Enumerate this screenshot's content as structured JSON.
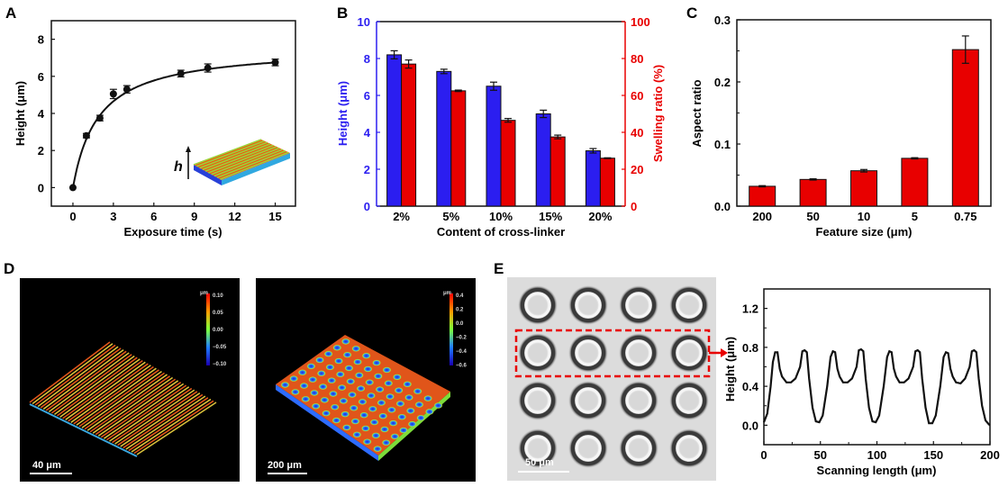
{
  "panel_labels": {
    "a": "A",
    "b": "B",
    "c": "C",
    "d": "D",
    "e": "E"
  },
  "colors": {
    "blue": "#2b1ef0",
    "red": "#e80000",
    "black": "#111111"
  },
  "chart_data": [
    {
      "id": "A",
      "type": "line",
      "title": "",
      "xlabel": "Exposure time (s)",
      "ylabel": "Height (μm)",
      "x": [
        0,
        1,
        2,
        3,
        4,
        8,
        10,
        15
      ],
      "y": [
        0,
        2.8,
        3.75,
        5.05,
        5.3,
        6.15,
        6.45,
        6.75
      ],
      "error": [
        0,
        0.12,
        0.15,
        0.25,
        0.2,
        0.18,
        0.22,
        0.18
      ],
      "xlim": [
        -1.6,
        16.5
      ],
      "ylim": [
        -1,
        9
      ],
      "xticks": [
        0,
        3,
        6,
        9,
        12,
        15
      ],
      "yticks": [
        0,
        2,
        4,
        6,
        8
      ],
      "inset_label": "h",
      "grid": false
    },
    {
      "id": "B",
      "type": "bar",
      "xlabel": "Content of cross-linker",
      "categories": [
        "2%",
        "5%",
        "10%",
        "15%",
        "20%"
      ],
      "series": [
        {
          "name": "Height",
          "axis": "left",
          "color": "#2b1ef0",
          "values": [
            8.2,
            7.3,
            6.5,
            5.0,
            3.0
          ],
          "error": [
            0.22,
            0.12,
            0.22,
            0.2,
            0.12
          ]
        },
        {
          "name": "Swelling ratio",
          "axis": "right",
          "color": "#e80000",
          "values": [
            77,
            62.5,
            46.5,
            37.5,
            26
          ],
          "error": [
            2.2,
            0.4,
            1.0,
            1.0,
            0.2
          ]
        }
      ],
      "ylabel_left": "Height (μm)",
      "ylabel_right": "Swelling ratio (%)",
      "ylim_left": [
        0,
        10
      ],
      "ylim_right": [
        0,
        100
      ],
      "yticks_left": [
        0,
        2,
        4,
        6,
        8,
        10
      ],
      "yticks_right": [
        0,
        20,
        40,
        60,
        80,
        100
      ],
      "grid": false
    },
    {
      "id": "C",
      "type": "bar",
      "xlabel": "Feature size (μm)",
      "ylabel": "Aspect ratio",
      "categories": [
        "200",
        "50",
        "10",
        "5",
        "0.75"
      ],
      "values": [
        0.032,
        0.043,
        0.057,
        0.077,
        0.252
      ],
      "error": [
        0.001,
        0.001,
        0.002,
        0.001,
        0.022
      ],
      "ylim": [
        0,
        0.3
      ],
      "yticks": [
        "0.0",
        "0.1",
        "0.2",
        "0.3"
      ],
      "grid": false
    },
    {
      "id": "E",
      "type": "line",
      "xlabel": "Scanning length (μm)",
      "ylabel": "Height (μm)",
      "x": [
        0,
        3,
        6,
        8,
        10,
        12,
        14,
        16,
        20,
        24,
        28,
        32,
        34,
        36,
        38,
        40,
        43,
        46,
        49,
        52,
        56,
        59,
        61,
        63,
        65,
        67,
        70,
        74,
        78,
        82,
        84,
        86,
        88,
        90,
        93,
        96,
        99,
        102,
        106,
        109,
        111,
        113,
        115,
        117,
        120,
        124,
        128,
        132,
        134,
        136,
        138,
        140,
        143,
        146,
        149,
        152,
        156,
        159,
        161,
        163,
        165,
        167,
        170,
        174,
        178,
        182,
        184,
        186,
        188,
        190,
        193,
        196,
        199,
        200
      ],
      "y": [
        0.03,
        0.12,
        0.4,
        0.65,
        0.75,
        0.75,
        0.58,
        0.5,
        0.44,
        0.44,
        0.48,
        0.6,
        0.76,
        0.77,
        0.75,
        0.48,
        0.18,
        0.04,
        0.03,
        0.1,
        0.4,
        0.7,
        0.76,
        0.75,
        0.58,
        0.5,
        0.44,
        0.44,
        0.48,
        0.6,
        0.77,
        0.78,
        0.76,
        0.48,
        0.18,
        0.04,
        0.03,
        0.1,
        0.4,
        0.7,
        0.76,
        0.75,
        0.58,
        0.5,
        0.44,
        0.44,
        0.48,
        0.6,
        0.76,
        0.77,
        0.75,
        0.48,
        0.18,
        0.02,
        0.02,
        0.1,
        0.4,
        0.7,
        0.75,
        0.74,
        0.58,
        0.5,
        0.44,
        0.43,
        0.48,
        0.6,
        0.76,
        0.77,
        0.75,
        0.48,
        0.2,
        0.05,
        0.01,
        0.0
      ],
      "xlim": [
        0,
        200
      ],
      "ylim": [
        -0.2,
        1.4
      ],
      "xticks": [
        0,
        50,
        100,
        150,
        200
      ],
      "yticks": [
        "0.0",
        "0.4",
        "0.8",
        "1.2"
      ],
      "grid": false
    }
  ],
  "images": {
    "d1": {
      "colorbar_unit": "μm",
      "colorbar_ticks": [
        "0.10",
        "0.05",
        "0.00",
        "−0.05",
        "−0.10"
      ],
      "scale_bar": "40 μm"
    },
    "d2": {
      "colorbar_unit": "μm",
      "colorbar_ticks": [
        "0.4",
        "0.2",
        "0.0",
        "−0.2",
        "−0.4",
        "−0.6"
      ],
      "scale_bar": "200 μm"
    },
    "e": {
      "scale_bar": "50 μm",
      "grid_rows": 4,
      "grid_cols": 4,
      "highlight_row": 2
    }
  }
}
